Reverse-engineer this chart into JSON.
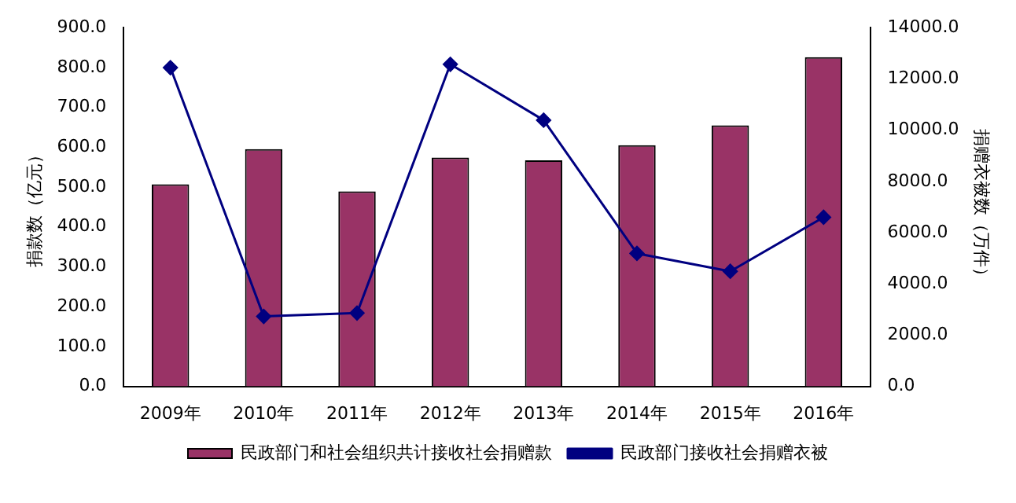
{
  "chart_data": {
    "type": "bar",
    "categories": [
      "2009年",
      "2010年",
      "2011年",
      "2012年",
      "2013年",
      "2014年",
      "2015年",
      "2016年"
    ],
    "series": [
      {
        "name": "民政部门和社会组织共计接收社会捐赠款",
        "color": "#993366",
        "values": [
          507,
          595,
          489,
          574,
          567,
          605,
          655,
          826
        ]
      },
      {
        "name": "民政部门接收社会捐赠衣被",
        "type": "line",
        "axis": "y2",
        "color": "#000080",
        "marker": "diamond",
        "values": [
          12440,
          2730,
          2860,
          12570,
          10390,
          5190,
          4490,
          6600
        ]
      }
    ],
    "ylabel": "捐款数（亿元）",
    "y2label": "捐赠衣被数（万件）",
    "ylim": [
      0,
      900
    ],
    "yticks": [
      {
        "value": 0,
        "label": "0.0"
      },
      {
        "value": 100,
        "label": "100.0"
      },
      {
        "value": 200,
        "label": "200.0"
      },
      {
        "value": 300,
        "label": "300.0"
      },
      {
        "value": 400,
        "label": "400.0"
      },
      {
        "value": 500,
        "label": "500.0"
      },
      {
        "value": 600,
        "label": "600.0"
      },
      {
        "value": 700,
        "label": "700.0"
      },
      {
        "value": 800,
        "label": "800.0"
      },
      {
        "value": 900,
        "label": "900.0"
      }
    ],
    "y2lim": [
      0,
      14000
    ],
    "y2ticks": [
      {
        "value": 0,
        "label": "0.0"
      },
      {
        "value": 2000,
        "label": "2000.0"
      },
      {
        "value": 4000,
        "label": "4000.0"
      },
      {
        "value": 6000,
        "label": "6000.0"
      },
      {
        "value": 8000,
        "label": "8000.0"
      },
      {
        "value": 10000,
        "label": "10000.0"
      },
      {
        "value": 12000,
        "label": "12000.0"
      },
      {
        "value": 14000,
        "label": "14000.0"
      }
    ],
    "grid": false,
    "legend": "bottom"
  }
}
